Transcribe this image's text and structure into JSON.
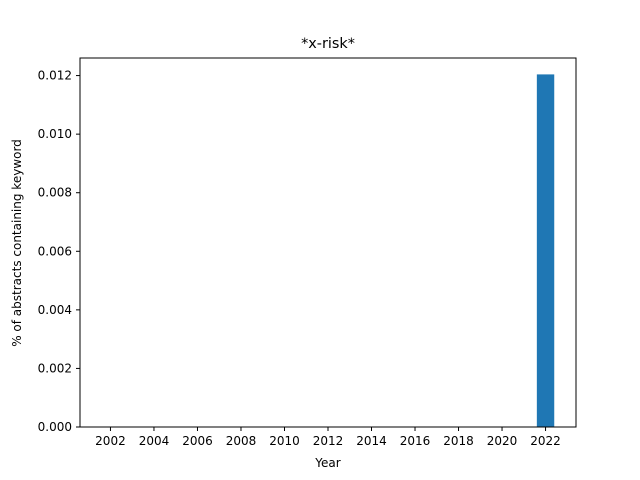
{
  "chart_data": {
    "type": "bar",
    "title": "*x-risk*",
    "xlabel": "Year",
    "ylabel": "% of abstracts containing keyword",
    "x_ticks": [
      "2002",
      "2004",
      "2006",
      "2008",
      "2010",
      "2012",
      "2014",
      "2016",
      "2018",
      "2020",
      "2022"
    ],
    "y_ticks": [
      "0.000",
      "0.002",
      "0.004",
      "0.006",
      "0.008",
      "0.010",
      "0.012"
    ],
    "xlim": [
      2000.6,
      2023.4
    ],
    "ylim": [
      0,
      0.0126
    ],
    "bars": [
      {
        "x": 2022,
        "value": 0.01204
      }
    ],
    "bar_color": "#1f77b4",
    "grid": false
  }
}
